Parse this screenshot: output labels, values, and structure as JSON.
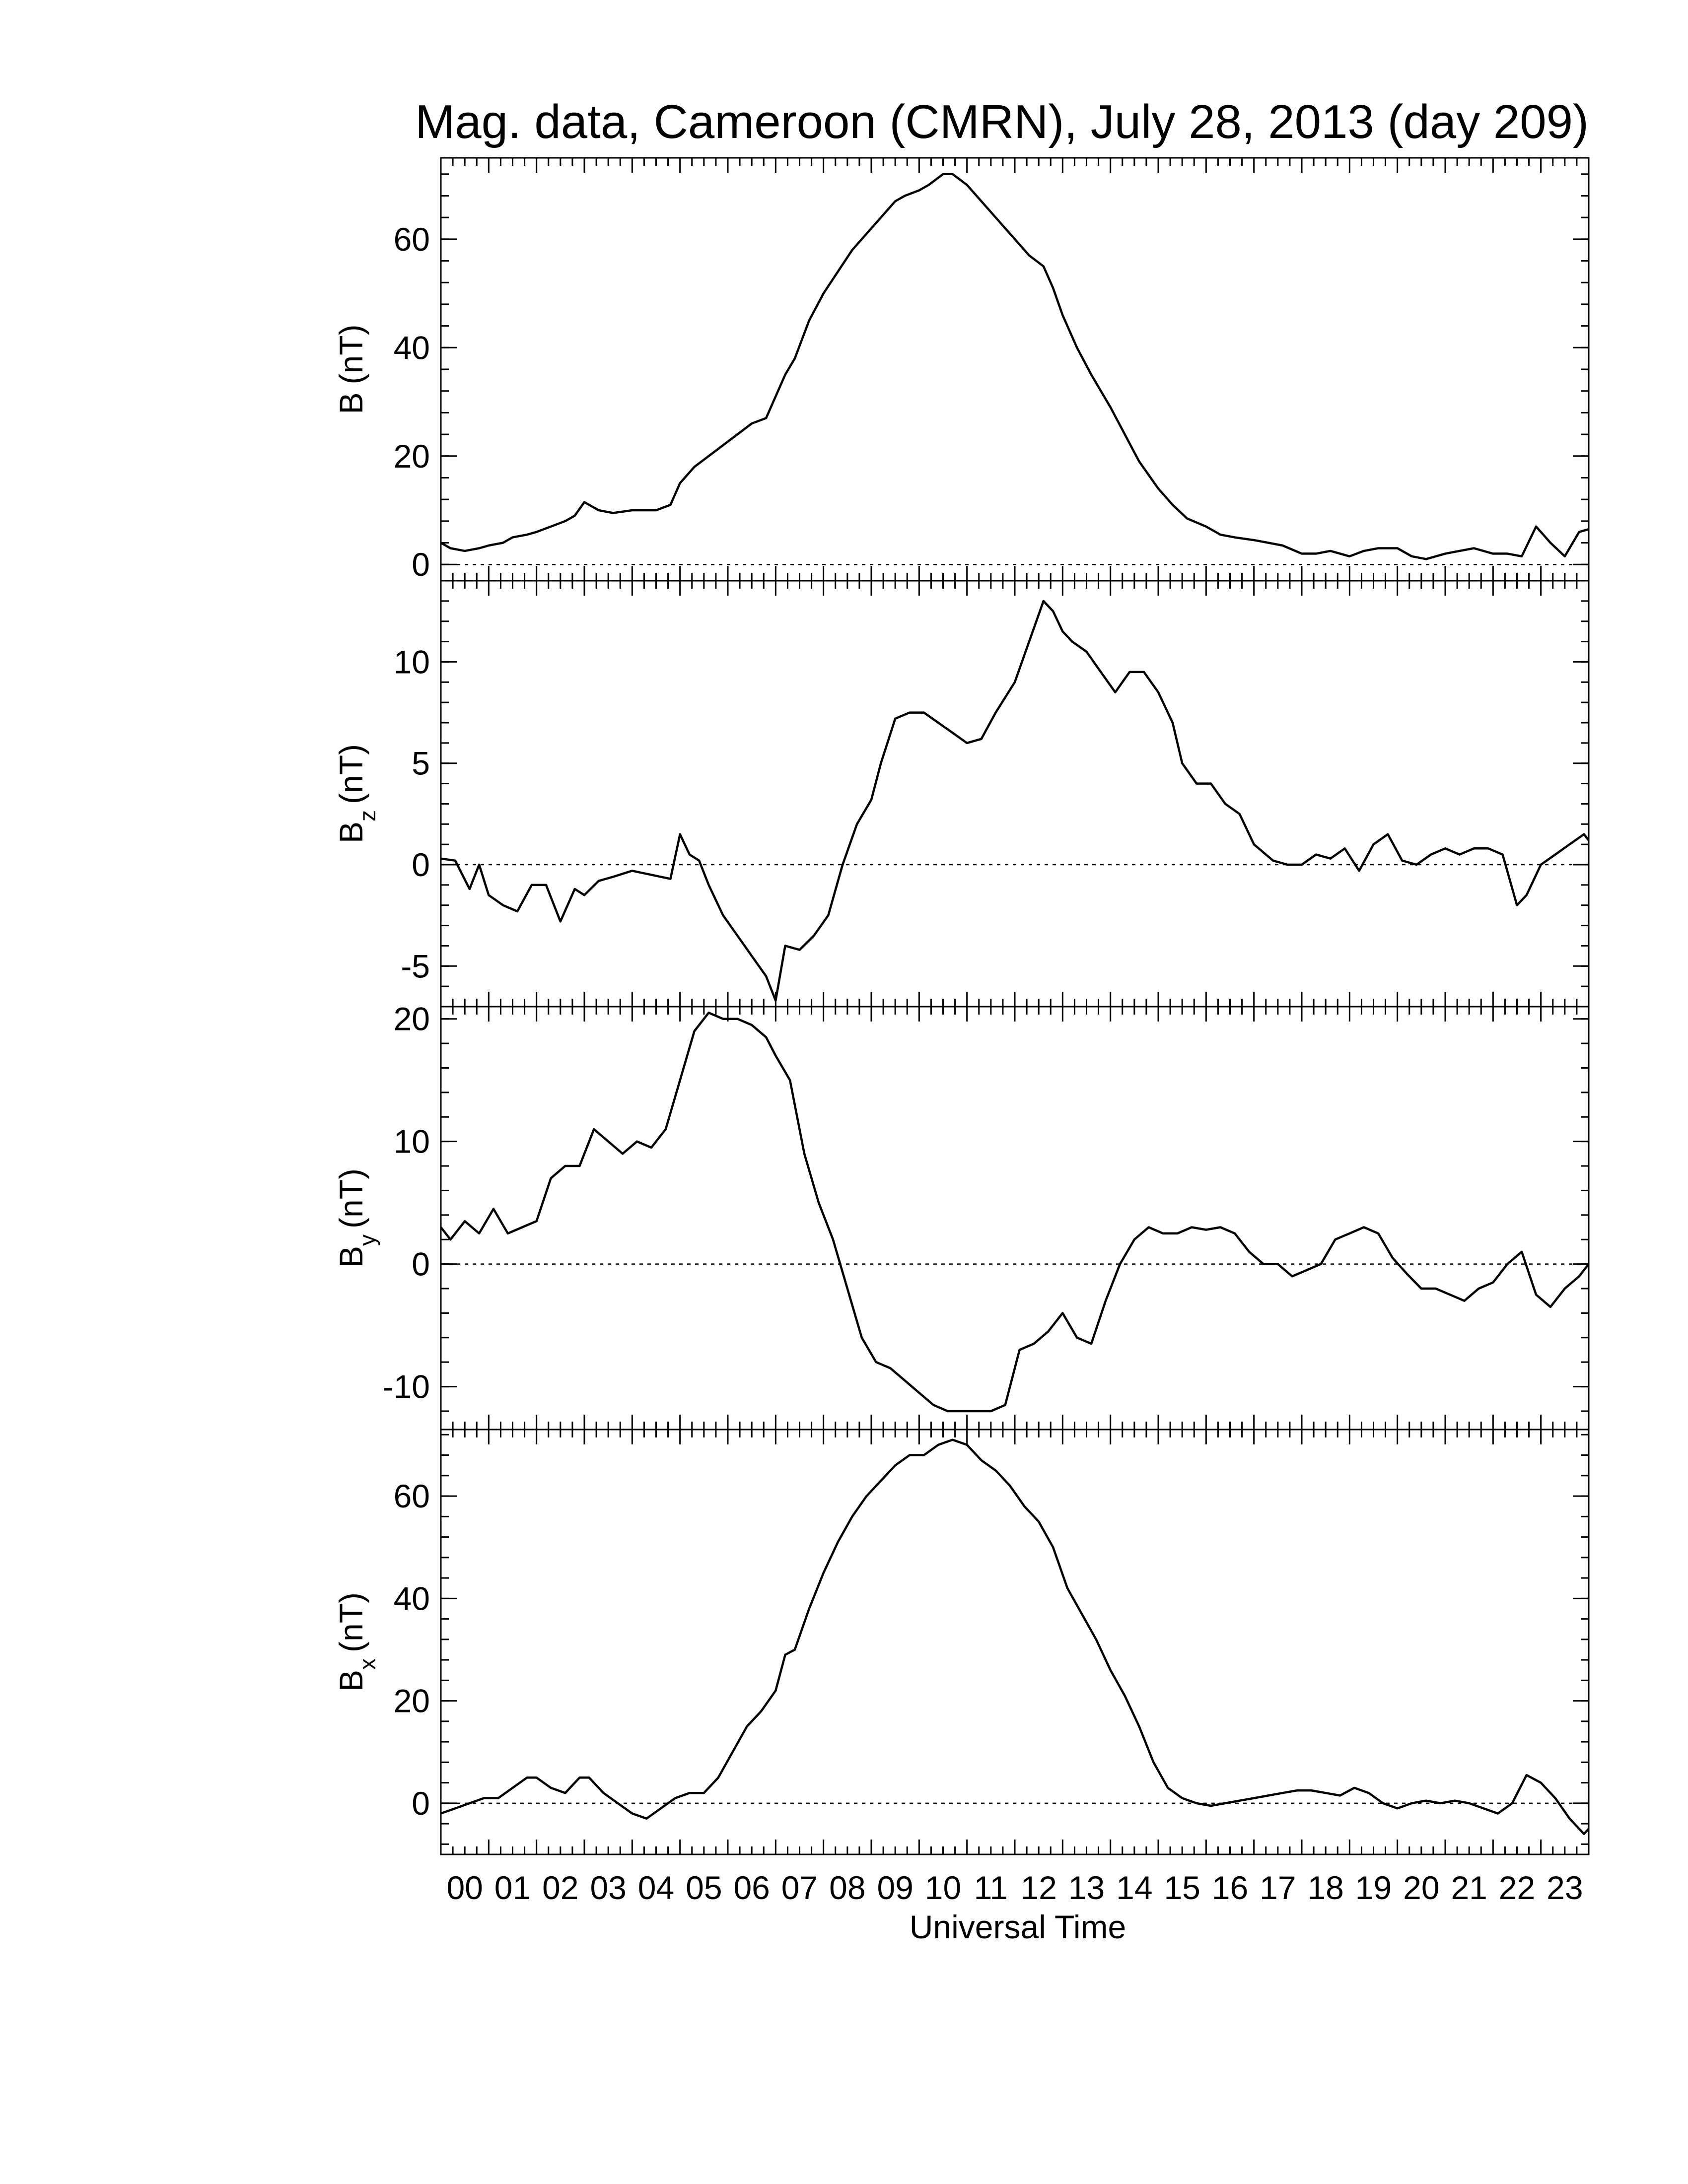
{
  "figure": {
    "title": "Mag. data, Cameroon (CMRN), July 28, 2013 (day 209)",
    "xlabel": "Universal Time"
  },
  "chart_data": [
    {
      "type": "line",
      "id": "B",
      "ylabel_main": "B",
      "ylabel_sub": "",
      "ylabel_unit": "(nT)",
      "ylim": [
        -3,
        75
      ],
      "yticks": [
        0,
        20,
        40,
        60
      ],
      "ytick_labels": [
        "0",
        "20",
        "40",
        "60"
      ],
      "xlim": [
        0,
        24
      ],
      "zero_line": true,
      "series": [
        {
          "x": [
            0,
            0.2,
            0.5,
            0.8,
            1.0,
            1.3,
            1.5,
            1.8,
            2.0,
            2.3,
            2.6,
            2.8,
            3.0,
            3.3,
            3.6,
            4.0,
            4.5,
            4.8,
            5.0,
            5.3,
            5.6,
            5.9,
            6.2,
            6.5,
            6.8,
            7.0,
            7.2,
            7.4,
            7.7,
            8.0,
            8.3,
            8.6,
            8.9,
            9.2,
            9.5,
            9.7,
            10.0,
            10.2,
            10.5,
            10.7,
            11.0,
            11.3,
            11.6,
            12.0,
            12.3,
            12.6,
            12.8,
            13.0,
            13.3,
            13.6,
            14.0,
            14.3,
            14.6,
            15.0,
            15.3,
            15.6,
            16.0,
            16.3,
            16.6,
            17.0,
            17.3,
            17.6,
            18.0,
            18.3,
            18.6,
            19.0,
            19.3,
            19.6,
            20.0,
            20.3,
            20.6,
            21.0,
            21.3,
            21.6,
            22.0,
            22.3,
            22.6,
            22.9,
            23.2,
            23.5,
            23.8,
            24.0
          ],
          "y": [
            4,
            3,
            2.5,
            3,
            3.5,
            4,
            5,
            5.5,
            6,
            7,
            8,
            9,
            11.5,
            10,
            9.5,
            10,
            10,
            11,
            15,
            18,
            20,
            22,
            24,
            26,
            27,
            31,
            35,
            38,
            45,
            50,
            54,
            58,
            61,
            64,
            67,
            68,
            69,
            70,
            72,
            72,
            70,
            67,
            64,
            60,
            57,
            55,
            51,
            46,
            40,
            35,
            29,
            24,
            19,
            14,
            11,
            8.5,
            7,
            5.5,
            5,
            4.5,
            4,
            3.5,
            2,
            2,
            2.5,
            1.5,
            2.5,
            3,
            3,
            1.5,
            1,
            2,
            2.5,
            3,
            2,
            2,
            1.5,
            7,
            4,
            1.5,
            6,
            6.5
          ]
        }
      ]
    },
    {
      "type": "line",
      "id": "Bz",
      "ylabel_main": "B",
      "ylabel_sub": "z",
      "ylabel_unit": "(nT)",
      "ylim": [
        -7,
        14
      ],
      "yticks": [
        -5,
        0,
        5,
        10
      ],
      "ytick_labels": [
        "-5",
        "0",
        "5",
        "10"
      ],
      "xlim": [
        0,
        24
      ],
      "zero_line": true,
      "series": [
        {
          "x": [
            0,
            0.3,
            0.6,
            0.8,
            1.0,
            1.3,
            1.6,
            1.9,
            2.2,
            2.5,
            2.8,
            3.0,
            3.3,
            3.6,
            4.0,
            4.4,
            4.8,
            5.0,
            5.2,
            5.4,
            5.6,
            5.9,
            6.2,
            6.5,
            6.8,
            7.0,
            7.2,
            7.5,
            7.8,
            8.1,
            8.4,
            8.7,
            9.0,
            9.2,
            9.5,
            9.8,
            10.1,
            10.4,
            10.7,
            11.0,
            11.3,
            11.6,
            12.0,
            12.3,
            12.6,
            12.8,
            13.0,
            13.2,
            13.5,
            13.8,
            14.1,
            14.4,
            14.7,
            15.0,
            15.3,
            15.5,
            15.8,
            16.1,
            16.4,
            16.7,
            17.0,
            17.4,
            17.7,
            18.0,
            18.3,
            18.6,
            18.9,
            19.2,
            19.5,
            19.8,
            20.1,
            20.4,
            20.7,
            21.0,
            21.3,
            21.6,
            21.9,
            22.2,
            22.5,
            22.7,
            23.0,
            23.3,
            23.6,
            23.9,
            24.0
          ],
          "y": [
            0.3,
            0.2,
            -1.2,
            0,
            -1.5,
            -2,
            -2.3,
            -1,
            -1,
            -2.8,
            -1.2,
            -1.5,
            -0.8,
            -0.6,
            -0.3,
            -0.5,
            -0.7,
            1.5,
            0.5,
            0.2,
            -1,
            -2.5,
            -3.5,
            -4.5,
            -5.5,
            -6.7,
            -4,
            -4.2,
            -3.5,
            -2.5,
            0,
            2,
            3.2,
            5,
            7.2,
            7.5,
            7.5,
            7,
            6.5,
            6,
            6.2,
            7.5,
            9,
            11,
            13,
            12.5,
            11.5,
            11,
            10.5,
            9.5,
            8.5,
            9.5,
            9.5,
            8.5,
            7,
            5,
            4,
            4,
            3,
            2.5,
            1,
            0.2,
            0,
            0,
            0.5,
            0.3,
            0.8,
            -0.3,
            1,
            1.5,
            0.2,
            0,
            0.5,
            0.8,
            0.5,
            0.8,
            0.8,
            0.5,
            -2,
            -1.5,
            0,
            0.5,
            1,
            1.5,
            1.2
          ]
        }
      ]
    },
    {
      "type": "line",
      "id": "By",
      "ylabel_main": "B",
      "ylabel_sub": "y",
      "ylabel_unit": "(nT)",
      "ylim": [
        -13.5,
        21
      ],
      "yticks": [
        -10,
        0,
        10,
        20
      ],
      "ytick_labels": [
        "-10",
        "0",
        "10",
        "20"
      ],
      "xlim": [
        0,
        24
      ],
      "zero_line": true,
      "series": [
        {
          "x": [
            0,
            0.2,
            0.5,
            0.8,
            1.1,
            1.4,
            1.7,
            2.0,
            2.3,
            2.6,
            2.9,
            3.2,
            3.5,
            3.8,
            4.1,
            4.4,
            4.7,
            5.0,
            5.3,
            5.6,
            5.9,
            6.2,
            6.5,
            6.8,
            7.0,
            7.3,
            7.6,
            7.9,
            8.2,
            8.5,
            8.8,
            9.1,
            9.4,
            9.7,
            10.0,
            10.3,
            10.6,
            10.9,
            11.2,
            11.5,
            11.8,
            12.1,
            12.4,
            12.7,
            13.0,
            13.3,
            13.6,
            13.9,
            14.2,
            14.5,
            14.8,
            15.1,
            15.4,
            15.7,
            16.0,
            16.3,
            16.6,
            16.9,
            17.2,
            17.5,
            17.8,
            18.1,
            18.4,
            18.7,
            19.0,
            19.3,
            19.6,
            19.9,
            20.2,
            20.5,
            20.8,
            21.1,
            21.4,
            21.7,
            22.0,
            22.3,
            22.6,
            22.9,
            23.2,
            23.5,
            23.8,
            24.0
          ],
          "y": [
            3,
            2,
            3.5,
            2.5,
            4.5,
            2.5,
            3,
            3.5,
            7,
            8,
            8,
            11,
            10,
            9,
            10,
            9.5,
            11,
            15,
            19,
            20.5,
            20,
            20,
            19.5,
            18.5,
            17,
            15,
            9,
            5,
            2,
            -2,
            -6,
            -8,
            -8.5,
            -9.5,
            -10.5,
            -11.5,
            -12,
            -12,
            -12,
            -12,
            -11.5,
            -7,
            -6.5,
            -5.5,
            -4,
            -6,
            -6.5,
            -3,
            0,
            2,
            3,
            2.5,
            2.5,
            3,
            2.8,
            3,
            2.5,
            1,
            0,
            0,
            -1,
            -0.5,
            0,
            2,
            2.5,
            3,
            2.5,
            0.5,
            -0.8,
            -2,
            -2,
            -2.5,
            -3,
            -2,
            -1.5,
            0,
            1,
            -2.5,
            -3.5,
            -2,
            -1,
            0
          ]
        }
      ]
    },
    {
      "type": "line",
      "id": "Bx",
      "ylabel_main": "B",
      "ylabel_sub": "x",
      "ylabel_unit": "(nT)",
      "ylim": [
        -10,
        73
      ],
      "yticks": [
        0,
        20,
        40,
        60
      ],
      "ytick_labels": [
        "0",
        "20",
        "40",
        "60"
      ],
      "xlim": [
        0,
        24
      ],
      "zero_line": true,
      "series": [
        {
          "x": [
            0,
            0.3,
            0.6,
            0.9,
            1.2,
            1.5,
            1.8,
            2.0,
            2.3,
            2.6,
            2.9,
            3.1,
            3.4,
            3.7,
            4.0,
            4.3,
            4.6,
            4.9,
            5.2,
            5.5,
            5.8,
            6.1,
            6.4,
            6.7,
            7.0,
            7.2,
            7.4,
            7.7,
            8.0,
            8.3,
            8.6,
            8.9,
            9.2,
            9.5,
            9.8,
            10.1,
            10.4,
            10.7,
            11.0,
            11.3,
            11.6,
            11.9,
            12.2,
            12.5,
            12.8,
            13.1,
            13.4,
            13.7,
            14.0,
            14.3,
            14.6,
            14.9,
            15.2,
            15.5,
            15.8,
            16.1,
            16.4,
            16.7,
            17.0,
            17.3,
            17.6,
            17.9,
            18.2,
            18.5,
            18.8,
            19.1,
            19.4,
            19.7,
            20.0,
            20.3,
            20.6,
            20.9,
            21.2,
            21.5,
            21.8,
            22.1,
            22.4,
            22.7,
            23.0,
            23.3,
            23.6,
            23.9,
            24.0
          ],
          "y": [
            -2,
            -1,
            0,
            1,
            1,
            3,
            5,
            5,
            3,
            2,
            5,
            5,
            2,
            0,
            -2,
            -3,
            -1,
            1,
            2,
            2,
            5,
            10,
            15,
            18,
            22,
            29,
            30,
            38,
            45,
            51,
            56,
            60,
            63,
            66,
            68,
            68,
            70,
            71,
            70,
            67,
            65,
            62,
            58,
            55,
            50,
            42,
            37,
            32,
            26,
            21,
            15,
            8,
            3,
            1,
            0,
            -0.5,
            0,
            0.5,
            1,
            1.5,
            2,
            2.5,
            2.5,
            2,
            1.5,
            3,
            2,
            0,
            -1,
            0,
            0.5,
            0,
            0.5,
            0,
            -1,
            -2,
            0,
            5.5,
            4,
            1,
            -3,
            -6,
            -5
          ]
        }
      ]
    }
  ],
  "x_axis": {
    "labels": [
      "00",
      "01",
      "02",
      "03",
      "04",
      "05",
      "06",
      "07",
      "08",
      "09",
      "10",
      "11",
      "12",
      "13",
      "14",
      "15",
      "16",
      "17",
      "18",
      "19",
      "20",
      "21",
      "22",
      "23"
    ]
  }
}
